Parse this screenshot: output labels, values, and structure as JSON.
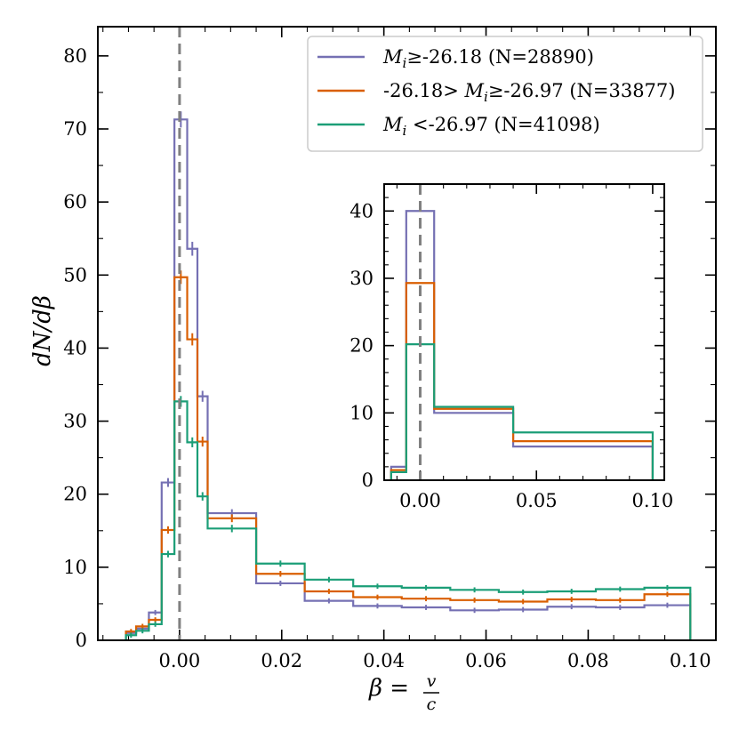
{
  "chart_data": {
    "type": "step-histogram",
    "xlabel": "β = v/c",
    "ylabel": "dN/dβ",
    "xlim": [
      -0.016,
      0.105
    ],
    "ylim": [
      0,
      84
    ],
    "xticks": [
      0.0,
      0.02,
      0.04,
      0.06,
      0.08,
      0.1
    ],
    "xtick_labels": [
      "0.00",
      "0.02",
      "0.04",
      "0.06",
      "0.08",
      "0.10"
    ],
    "yticks": [
      0,
      10,
      20,
      30,
      40,
      50,
      60,
      70,
      80
    ],
    "ytick_labels": [
      "0",
      "10",
      "20",
      "30",
      "40",
      "50",
      "60",
      "70",
      "80"
    ],
    "vline_x": 0.0,
    "legend_location": "top-right",
    "series": [
      {
        "name": "Mi≥-26.18 (N=28890)",
        "color": "#7570b3",
        "edges": [
          -0.0105,
          -0.0085,
          -0.006,
          -0.0035,
          -0.001,
          0.0015,
          0.0035,
          0.0055,
          0.015,
          0.0245,
          0.034,
          0.0435,
          0.053,
          0.0625,
          0.072,
          0.0815,
          0.091,
          0.1
        ],
        "values": [
          1.0,
          1.6,
          3.8,
          21.6,
          71.3,
          53.6,
          33.4,
          17.4,
          7.8,
          5.4,
          4.7,
          4.5,
          4.1,
          4.2,
          4.6,
          4.5,
          4.8
        ]
      },
      {
        "name": "-26.18> Mi≥-26.97 (N=33877)",
        "color": "#d95f02",
        "edges": [
          -0.0105,
          -0.0085,
          -0.006,
          -0.0035,
          -0.001,
          0.0015,
          0.0035,
          0.0055,
          0.015,
          0.0245,
          0.034,
          0.0435,
          0.053,
          0.0625,
          0.072,
          0.0815,
          0.091,
          0.1
        ],
        "values": [
          1.2,
          1.9,
          2.8,
          15.1,
          49.7,
          41.2,
          27.2,
          16.7,
          9.1,
          6.7,
          5.9,
          5.7,
          5.5,
          5.3,
          5.6,
          5.5,
          6.3
        ]
      },
      {
        "name": "Mi <-26.97 (N=41098)",
        "color": "#1b9e77",
        "edges": [
          -0.0105,
          -0.0085,
          -0.006,
          -0.0035,
          -0.001,
          0.0015,
          0.0035,
          0.0055,
          0.015,
          0.0245,
          0.034,
          0.0435,
          0.053,
          0.0625,
          0.072,
          0.0815,
          0.091,
          0.1
        ],
        "values": [
          0.7,
          1.3,
          2.2,
          11.8,
          32.7,
          27.1,
          19.7,
          15.3,
          10.5,
          8.3,
          7.4,
          7.2,
          6.9,
          6.6,
          6.7,
          7.0,
          7.2
        ]
      }
    ],
    "legend": [
      {
        "prefix": "M",
        "sub": "i",
        "rest": "≥-26.18 (N=28890)",
        "lead": ""
      },
      {
        "prefix": "M",
        "sub": "i",
        "rest": "≥-26.97 (N=33877)",
        "lead": "-26.18> "
      },
      {
        "prefix": "M",
        "sub": "i",
        "rest": " <-26.97 (N=41098)",
        "lead": ""
      }
    ],
    "inset": {
      "xlim": [
        -0.0155,
        0.105
      ],
      "ylim": [
        0,
        44
      ],
      "xticks": [
        0.0,
        0.05,
        0.1
      ],
      "xtick_labels": [
        "0.00",
        "0.05",
        "0.10"
      ],
      "yticks": [
        0,
        10,
        20,
        30,
        40
      ],
      "ytick_labels": [
        "0",
        "10",
        "20",
        "30",
        "40"
      ],
      "vline_x": 0.0,
      "series": [
        {
          "name": "Mi≥-26.18",
          "color": "#7570b3",
          "edges": [
            -0.0125,
            -0.006,
            0.006,
            0.04,
            0.1
          ],
          "values": [
            2.0,
            40.0,
            10.0,
            5.0
          ]
        },
        {
          "name": "-26.18> Mi≥-26.97",
          "color": "#d95f02",
          "edges": [
            -0.0125,
            -0.006,
            0.006,
            0.04,
            0.1
          ],
          "values": [
            1.5,
            29.3,
            10.6,
            5.8
          ]
        },
        {
          "name": "Mi <-26.97",
          "color": "#1b9e77",
          "edges": [
            -0.0125,
            -0.006,
            0.006,
            0.04,
            0.1
          ],
          "values": [
            1.2,
            20.2,
            10.9,
            7.1
          ]
        }
      ]
    }
  }
}
